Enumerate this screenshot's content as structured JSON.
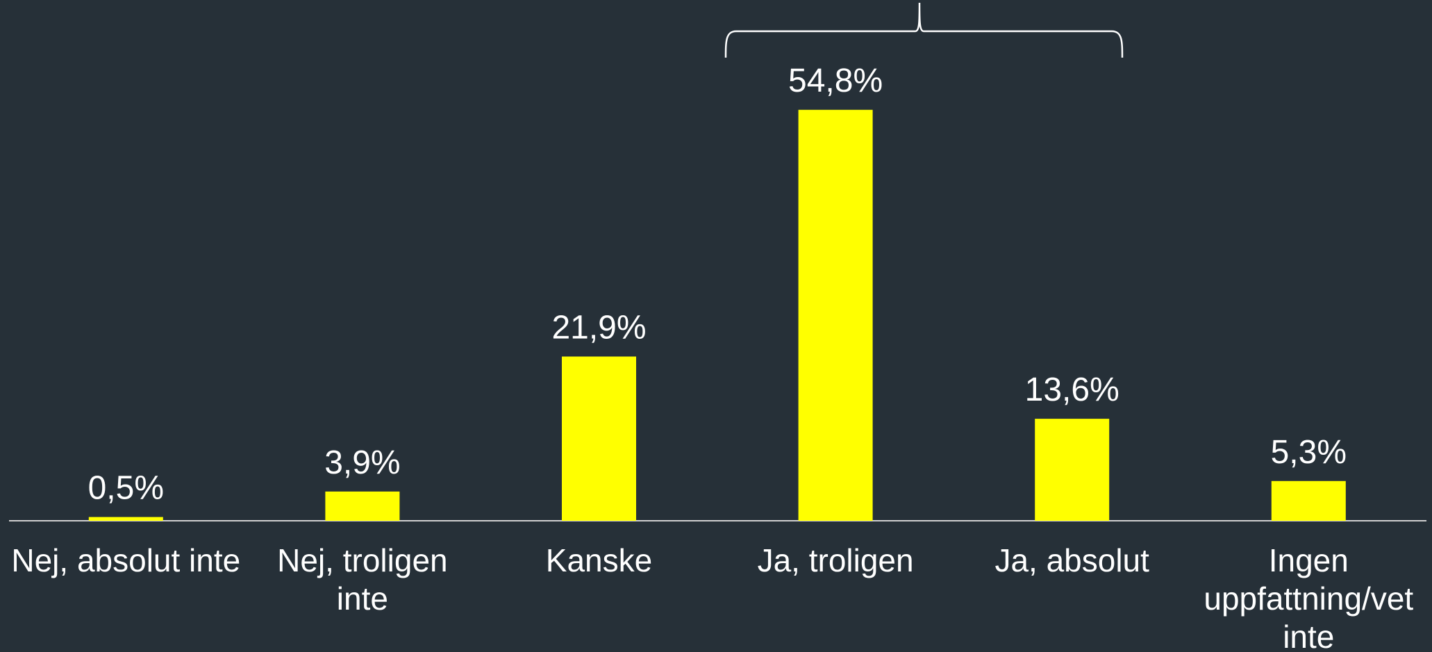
{
  "chart_data": {
    "type": "bar",
    "categories": [
      "Nej, absolut inte",
      "Nej, troligen inte",
      "Kanske",
      "Ja, troligen",
      "Ja, absolut",
      "Ingen uppfattning/vet inte"
    ],
    "values": [
      0.5,
      3.9,
      21.9,
      54.8,
      13.6,
      5.3
    ],
    "value_labels": [
      "0,5%",
      "3,9%",
      "21,9%",
      "54,8%",
      "13,6%",
      "5,3%"
    ],
    "color": "#ffff00",
    "ylim": [
      0,
      60
    ]
  }
}
